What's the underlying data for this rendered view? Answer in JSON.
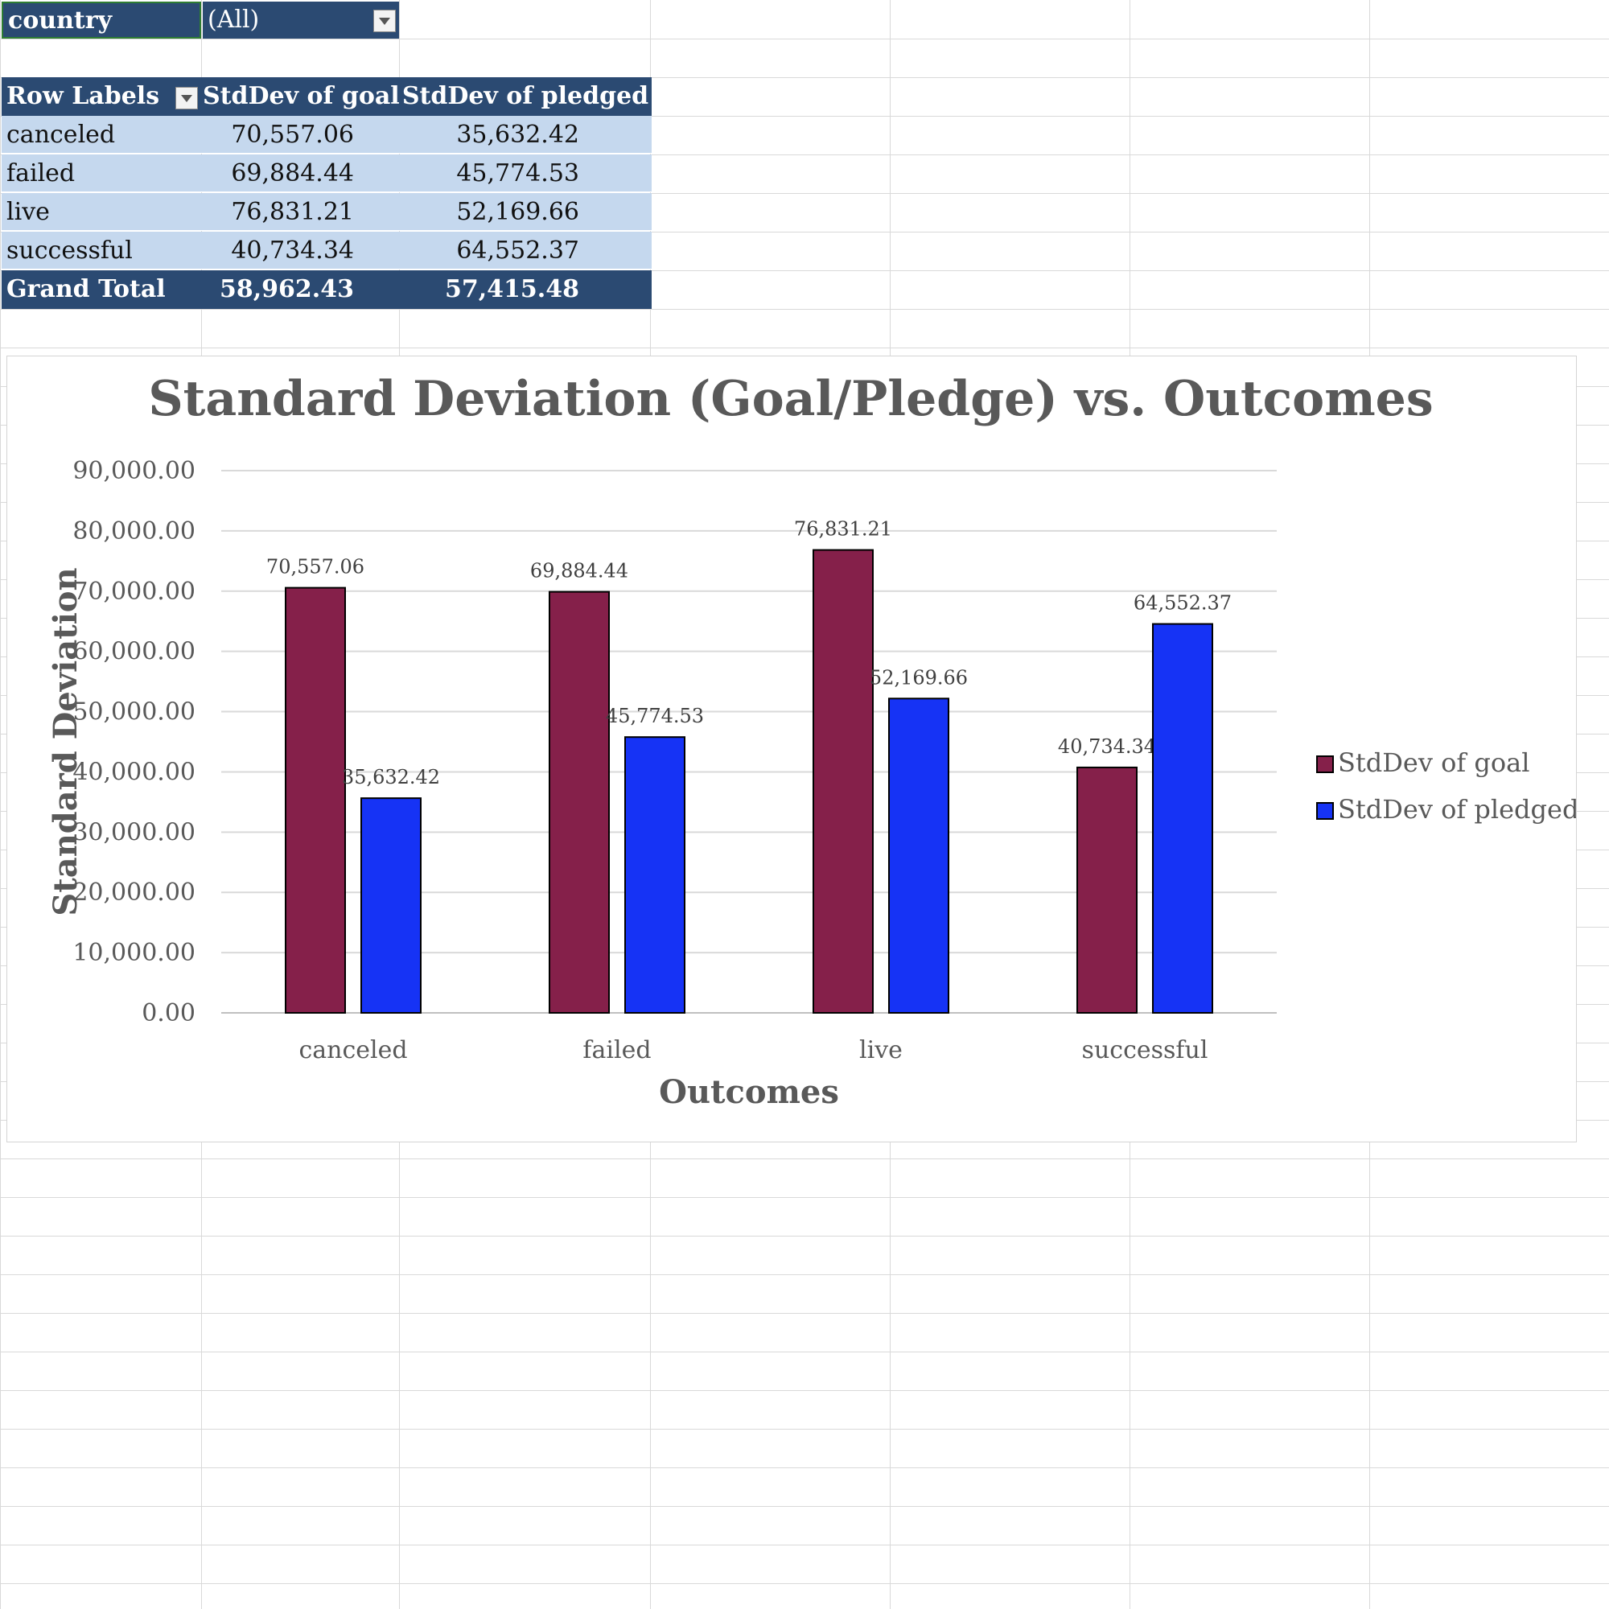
{
  "filter": {
    "field": "country",
    "value": "(All)"
  },
  "pivot": {
    "headers": [
      "Row Labels",
      "StdDev of goal",
      "StdDev of pledged"
    ],
    "rows": [
      {
        "label": "canceled",
        "goal": "70,557.06",
        "pledged": "35,632.42"
      },
      {
        "label": "failed",
        "goal": "69,884.44",
        "pledged": "45,774.53"
      },
      {
        "label": "live",
        "goal": "76,831.21",
        "pledged": "52,169.66"
      },
      {
        "label": "successful",
        "goal": "40,734.34",
        "pledged": "64,552.37"
      }
    ],
    "total": {
      "label": "Grand Total",
      "goal": "58,962.43",
      "pledged": "57,415.48"
    }
  },
  "colors": {
    "header": "#2b4a72",
    "band": "#c5d8ee",
    "goal": "#85204a",
    "pledged": "#1633f5"
  },
  "chart_data": {
    "type": "bar",
    "title": "Standard Deviation (Goal/Pledge) vs. Outcomes",
    "xlabel": "Outcomes",
    "ylabel": "Standard Deviation",
    "categories": [
      "canceled",
      "failed",
      "live",
      "successful"
    ],
    "series": [
      {
        "name": "StdDev of goal",
        "values": [
          70557.06,
          69884.44,
          76831.21,
          40734.34
        ],
        "labels": [
          "70,557.06",
          "69,884.44",
          "76,831.21",
          "40,734.34"
        ],
        "color": "#85204a"
      },
      {
        "name": "StdDev of pledged",
        "values": [
          35632.42,
          45774.53,
          52169.66,
          64552.37
        ],
        "labels": [
          "35,632.42",
          "45,774.53",
          "52,169.66",
          "64,552.37"
        ],
        "color": "#1633f5"
      }
    ],
    "ylim": [
      0,
      90000
    ],
    "yticks": [
      "0.00",
      "10,000.00",
      "20,000.00",
      "30,000.00",
      "40,000.00",
      "50,000.00",
      "60,000.00",
      "70,000.00",
      "80,000.00",
      "90,000.00"
    ],
    "grid": true,
    "legend": "right"
  }
}
